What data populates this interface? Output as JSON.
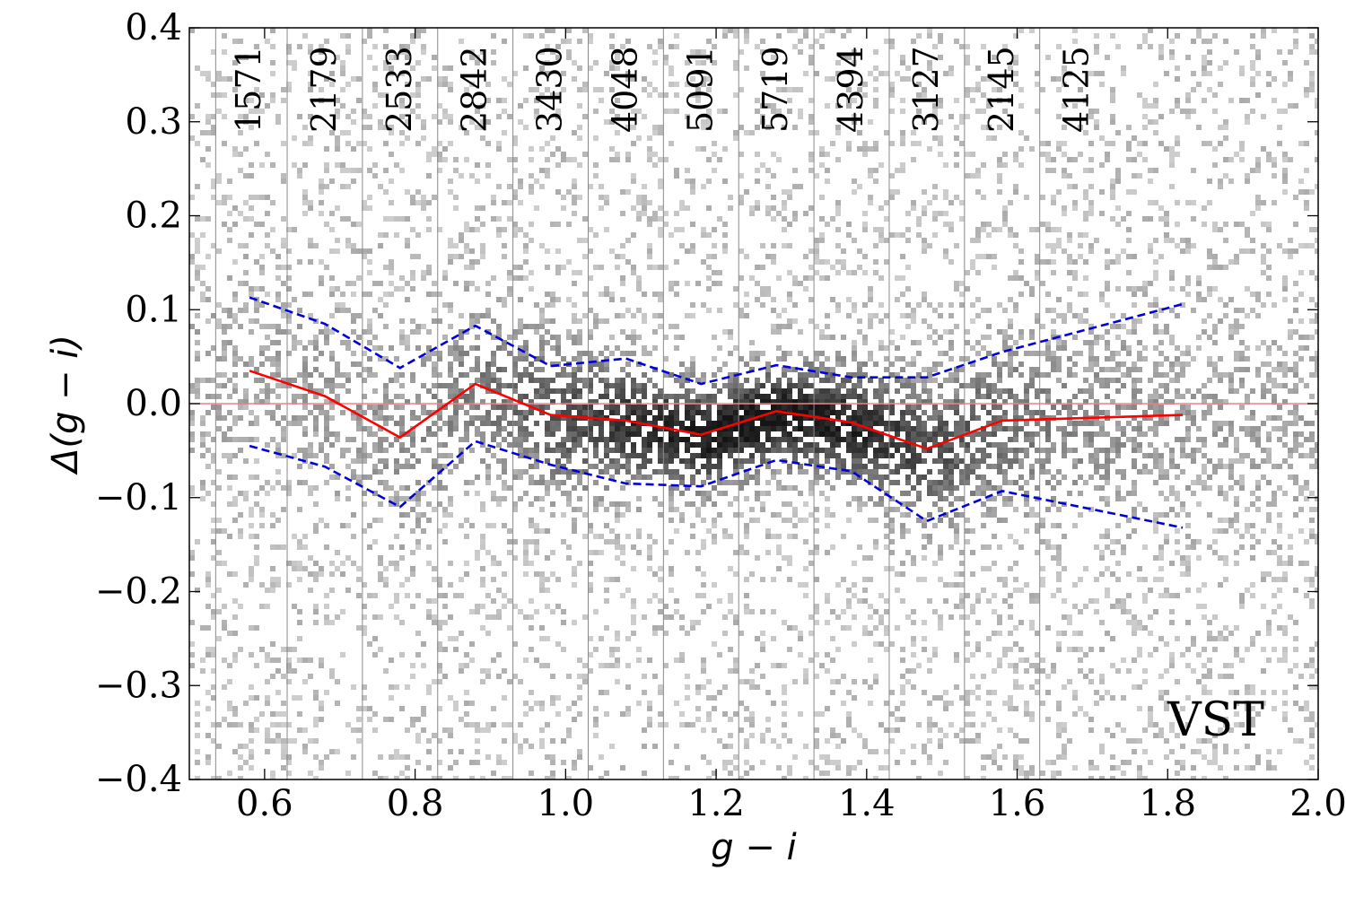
{
  "chart_data": {
    "type": "scatter",
    "xlabel": "g − i",
    "ylabel": "Δ(g − i)",
    "panel_label": "VST",
    "xlim": [
      0.5,
      2.0
    ],
    "ylim": [
      -0.4,
      0.4
    ],
    "x_ticks": [
      0.6,
      0.8,
      1.0,
      1.2,
      1.4,
      1.6,
      1.8,
      2.0
    ],
    "x_tick_labels": [
      "0.6",
      "0.8",
      "1.0",
      "1.2",
      "1.4",
      "1.6",
      "1.8",
      "2.0"
    ],
    "y_ticks": [
      0.4,
      0.3,
      0.2,
      0.1,
      0.0,
      -0.1,
      -0.2,
      -0.3,
      -0.4
    ],
    "y_tick_labels": [
      "0.4",
      "0.3",
      "0.2",
      "0.1",
      "0.0",
      "−0.1",
      "−0.2",
      "−0.3",
      "−0.4"
    ],
    "bin_edges": [
      0.535,
      0.63,
      0.73,
      0.83,
      0.93,
      1.03,
      1.13,
      1.23,
      1.33,
      1.43,
      1.53,
      1.63
    ],
    "bin_counts": [
      {
        "x": 0.58,
        "label": "1571"
      },
      {
        "x": 0.68,
        "label": "2179"
      },
      {
        "x": 0.78,
        "label": "2533"
      },
      {
        "x": 0.88,
        "label": "2842"
      },
      {
        "x": 0.98,
        "label": "3430"
      },
      {
        "x": 1.08,
        "label": "4048"
      },
      {
        "x": 1.18,
        "label": "5091"
      },
      {
        "x": 1.28,
        "label": "5719"
      },
      {
        "x": 1.38,
        "label": "4394"
      },
      {
        "x": 1.48,
        "label": "3127"
      },
      {
        "x": 1.58,
        "label": "2145"
      },
      {
        "x": 1.68,
        "label": "4125"
      }
    ],
    "reference_line": {
      "y": 0.0,
      "color": "#f08080"
    },
    "series": [
      {
        "style": "solid",
        "color": "#ff0000",
        "x": [
          0.58,
          0.68,
          0.78,
          0.88,
          0.98,
          1.08,
          1.18,
          1.28,
          1.38,
          1.48,
          1.58,
          1.82
        ],
        "y": [
          0.035,
          0.008,
          -0.036,
          0.021,
          -0.012,
          -0.018,
          -0.033,
          -0.008,
          -0.02,
          -0.048,
          -0.018,
          -0.012
        ]
      },
      {
        "style": "dashed",
        "color": "#0000dd",
        "x": [
          0.58,
          0.68,
          0.78,
          0.88,
          0.98,
          1.08,
          1.18,
          1.28,
          1.38,
          1.48,
          1.58,
          1.82
        ],
        "y": [
          0.113,
          0.085,
          0.038,
          0.083,
          0.04,
          0.048,
          0.021,
          0.041,
          0.028,
          0.028,
          0.055,
          0.106
        ]
      },
      {
        "style": "dashed",
        "color": "#0000dd",
        "x": [
          0.58,
          0.68,
          0.78,
          0.88,
          0.98,
          1.08,
          1.18,
          1.28,
          1.38,
          1.48,
          1.58,
          1.82
        ],
        "y": [
          -0.045,
          -0.067,
          -0.11,
          -0.04,
          -0.065,
          -0.085,
          -0.088,
          -0.06,
          -0.072,
          -0.125,
          -0.093,
          -0.132
        ]
      }
    ],
    "density_colormap": "greys"
  }
}
